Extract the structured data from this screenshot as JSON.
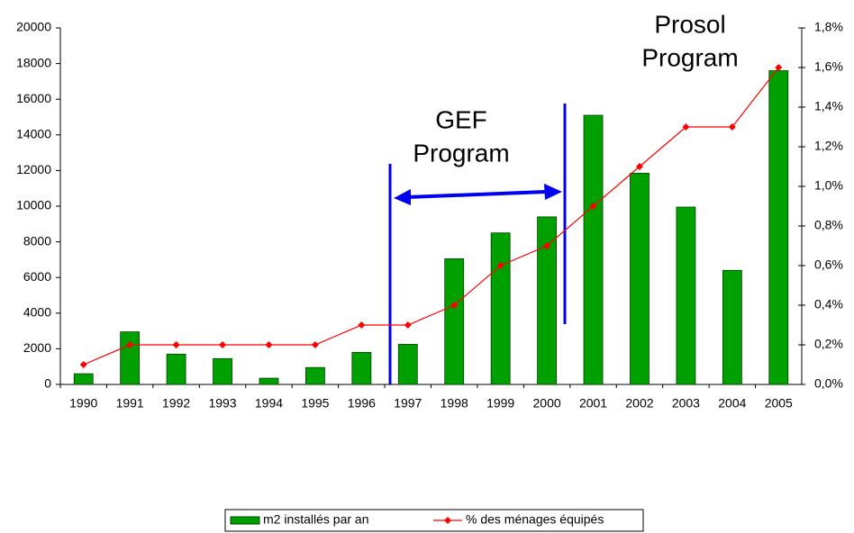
{
  "chart_data": {
    "type": "bar_line",
    "categories": [
      "1990",
      "1991",
      "1992",
      "1993",
      "1994",
      "1995",
      "1996",
      "1997",
      "1998",
      "1999",
      "2000",
      "2001",
      "2002",
      "2003",
      "2004",
      "2005"
    ],
    "series": [
      {
        "name": "m2 installés par an",
        "type": "bar",
        "color": "#00a000",
        "values": [
          600,
          2950,
          1700,
          1450,
          350,
          950,
          1800,
          2250,
          7050,
          8500,
          9400,
          15100,
          11850,
          9950,
          6400,
          17600
        ]
      },
      {
        "name": "% des ménages équipés",
        "type": "line",
        "axis": "y2",
        "color": "#ff0000",
        "values": [
          0.1,
          0.2,
          0.2,
          0.2,
          0.2,
          0.2,
          0.3,
          0.3,
          0.4,
          0.6,
          0.7,
          0.9,
          1.1,
          1.3,
          1.3,
          1.6
        ]
      }
    ],
    "ylim": [
      0,
      20000
    ],
    "yticks": [
      0,
      2000,
      4000,
      6000,
      8000,
      10000,
      12000,
      14000,
      16000,
      18000,
      20000
    ],
    "y2lim": [
      0,
      1.8
    ],
    "y2ticks": [
      {
        "value": 0,
        "label": "0,0%"
      },
      {
        "value": 0.2,
        "label": "0,2%"
      },
      {
        "value": 0.4,
        "label": "0,4%"
      },
      {
        "value": 0.6,
        "label": "0,6%"
      },
      {
        "value": 0.8,
        "label": "0,8%"
      },
      {
        "value": 1.0,
        "label": "1,0%"
      },
      {
        "value": 1.2,
        "label": "1,2%"
      },
      {
        "value": 1.4,
        "label": "1,4%"
      },
      {
        "value": 1.6,
        "label": "1,6%"
      },
      {
        "value": 1.8,
        "label": "1,8%"
      }
    ],
    "annotations": [
      [
        "GEF",
        "Program"
      ],
      [
        "Prosol",
        "Program"
      ]
    ],
    "legend": "bottom"
  }
}
